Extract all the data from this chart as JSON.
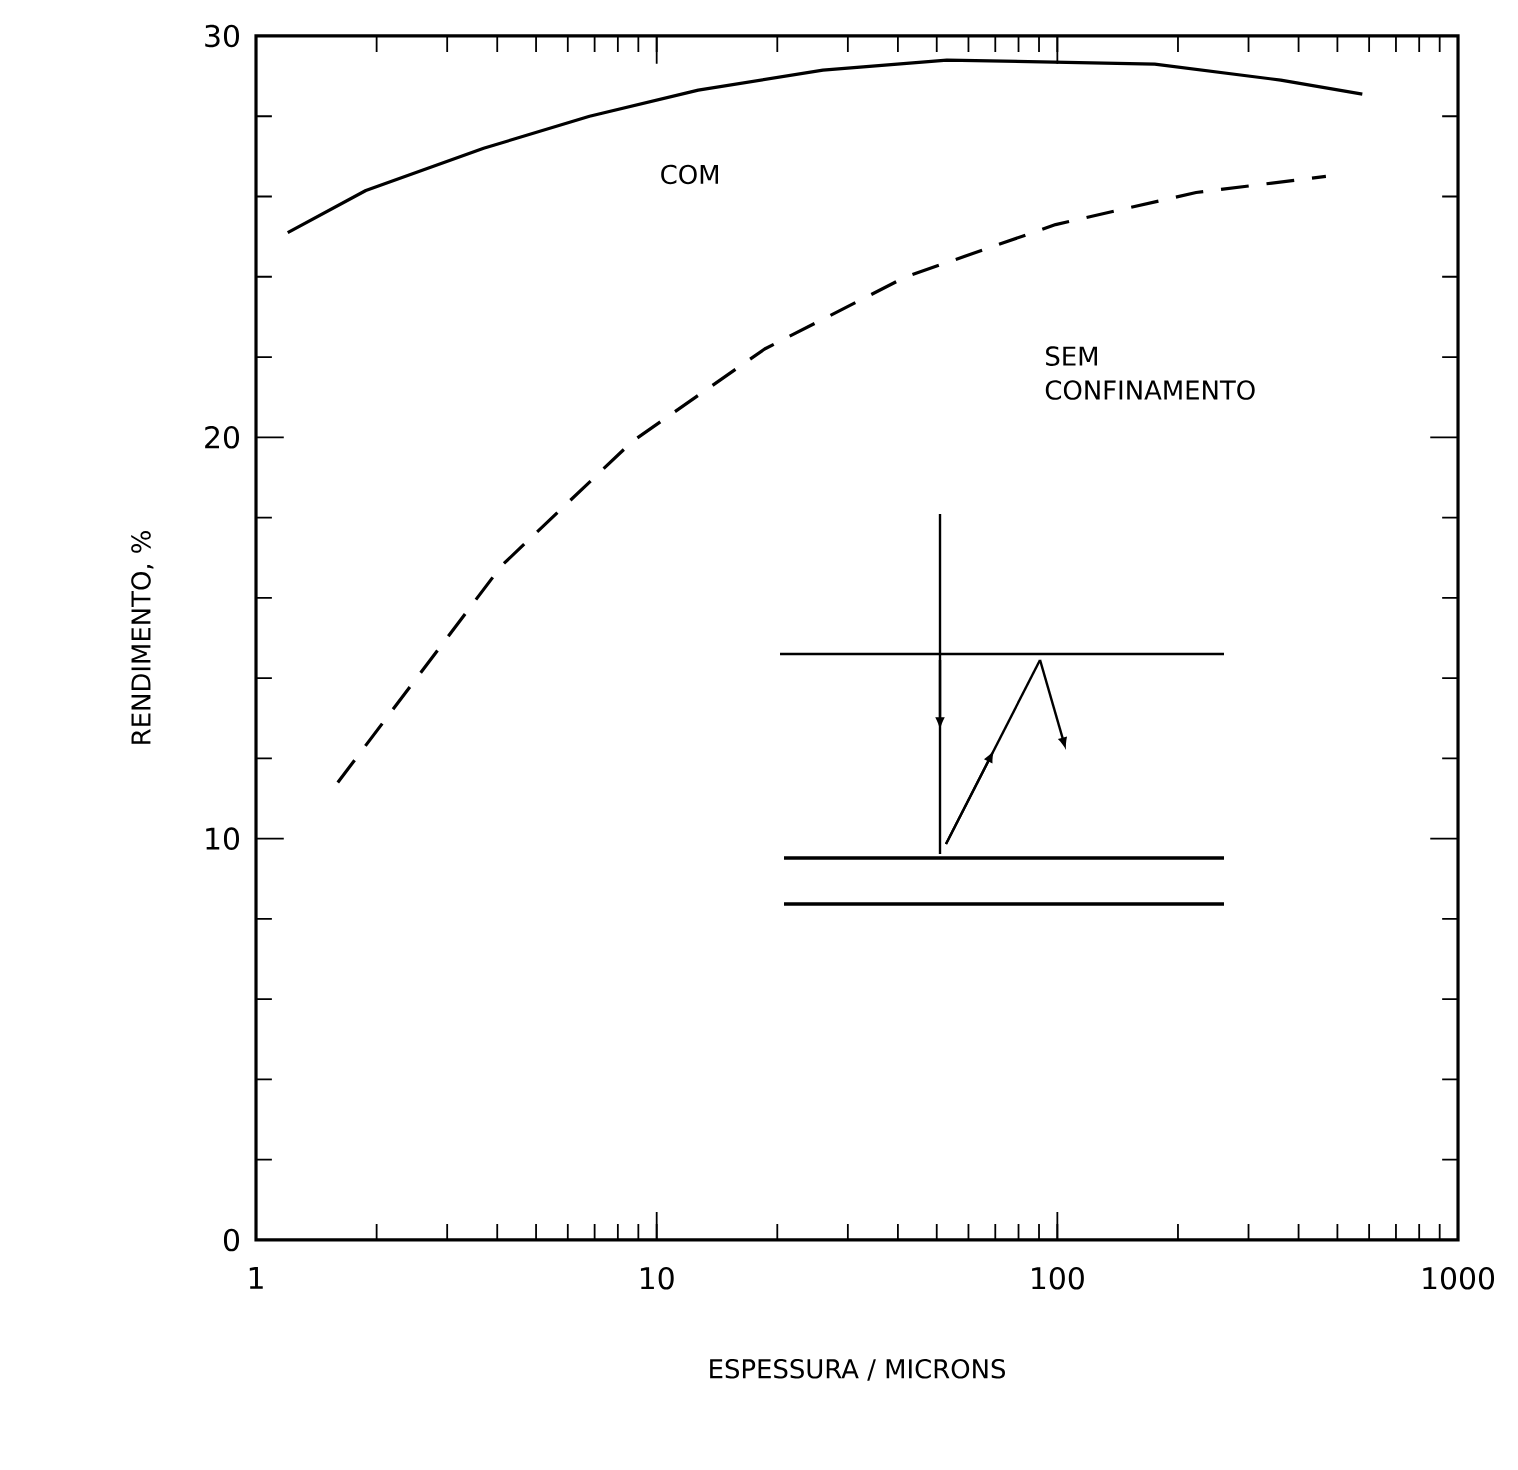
{
  "chart_data": {
    "type": "line",
    "log": "x",
    "xlabel": "ESPESSURA / MICRONS",
    "ylabel": "RENDIMENTO,  %",
    "xlim": [
      1,
      1000
    ],
    "xticks": [
      1,
      10,
      100,
      1000
    ],
    "ylim": [
      0,
      30
    ],
    "yticks": [
      0,
      10,
      20,
      30
    ],
    "annotations": [
      "COM",
      "SEM CONFINAMENTO"
    ],
    "series": [
      {
        "color": "#000000",
        "line_style": "solid",
        "x": [
          1.2,
          1.88,
          3.7,
          6.8,
          12.7,
          26,
          53,
          175,
          361,
          577
        ],
        "values": [
          25.1,
          26.15,
          27.2,
          28.0,
          28.65,
          29.15,
          29.4,
          29.3,
          28.9,
          28.55
        ]
      },
      {
        "color": "#000000",
        "line_style": "dashed",
        "x": [
          1.6,
          4.1,
          8.7,
          18.6,
          41.9,
          99,
          222,
          468
        ],
        "values": [
          11.4,
          16.8,
          19.9,
          22.2,
          24.0,
          25.3,
          26.1,
          26.5
        ]
      }
    ]
  }
}
